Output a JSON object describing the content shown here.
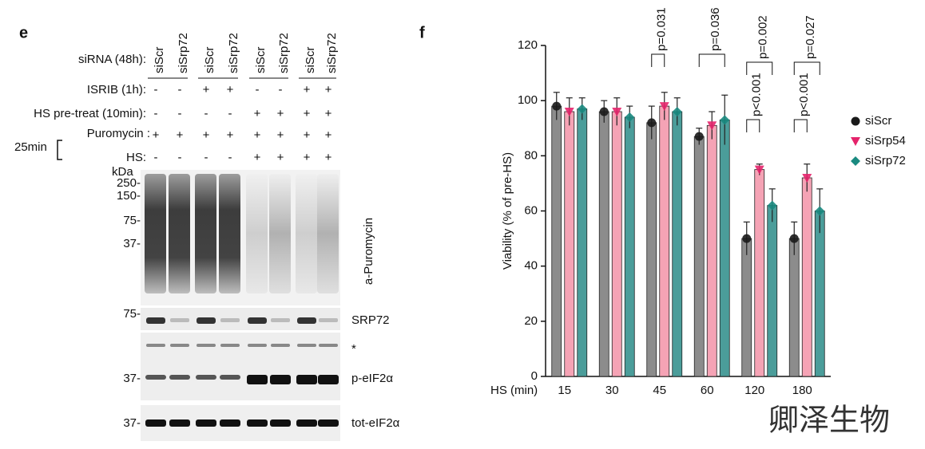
{
  "panel_e": {
    "label": "e",
    "rows": [
      {
        "label": "siRNA (48h):",
        "columns": [
          "siScr",
          "siSrp72",
          "siScr",
          "siSrp72",
          "siScr",
          "siSrp72",
          "siScr",
          "siSrp72"
        ]
      },
      {
        "label": "ISRIB (1h):",
        "signs": [
          "-",
          "-",
          "+",
          "+",
          "-",
          "-",
          "+",
          "+"
        ]
      },
      {
        "label": "HS pre-treat (10min):",
        "signs": [
          "-",
          "-",
          "-",
          "-",
          "+",
          "+",
          "+",
          "+"
        ]
      },
      {
        "label": "Puromycin :",
        "signs": [
          "+",
          "+",
          "+",
          "+",
          "+",
          "+",
          "+",
          "+"
        ]
      },
      {
        "label": "HS:",
        "signs": [
          "-",
          "-",
          "-",
          "-",
          "+",
          "+",
          "+",
          "+"
        ]
      }
    ],
    "time": "25min",
    "kda": "kDa",
    "markers": [
      "250-",
      "150-",
      "75-",
      "37-"
    ],
    "blots": [
      {
        "label": "a-Puromycin"
      },
      {
        "label": "SRP72",
        "marker": "75-"
      },
      {
        "label": "p-eIF2α",
        "marker": "37-",
        "note": "*"
      },
      {
        "label": "tot-eIF2α",
        "marker": "37-"
      }
    ]
  },
  "chart_data": {
    "type": "bar",
    "label": "f",
    "x_label": "HS (min)",
    "y_label": "Viability (% of pre-HS)",
    "categories": [
      "15",
      "30",
      "45",
      "60",
      "120",
      "180"
    ],
    "series": [
      {
        "name": "siScr",
        "color": "#8c8c8c",
        "marker_color": "#1a1a1a",
        "values": [
          98,
          96,
          92,
          87,
          50,
          50
        ],
        "errors": [
          5,
          4,
          6,
          3,
          6,
          6
        ]
      },
      {
        "name": "siSrp54",
        "color": "#f5a3b5",
        "marker_color": "#e5236b",
        "values": [
          96,
          96,
          98,
          91,
          75,
          72
        ],
        "errors": [
          5,
          5,
          5,
          5,
          2,
          5
        ]
      },
      {
        "name": "siSrp72",
        "color": "#4b9d9a",
        "marker_color": "#1a8a80",
        "values": [
          97,
          94,
          96,
          93,
          62,
          60
        ],
        "errors": [
          4,
          4,
          5,
          9,
          6,
          8
        ]
      }
    ],
    "ylim": [
      0,
      120
    ],
    "yticks": [
      0,
      20,
      40,
      60,
      80,
      100,
      120
    ],
    "annotations": [
      {
        "category": "45",
        "between": [
          "siScr",
          "siSrp54"
        ],
        "text": "p=0.031"
      },
      {
        "category": "60",
        "between": [
          "siScr",
          "siSrp72"
        ],
        "text": "p=0.036"
      },
      {
        "category": "120",
        "between": [
          "siScr",
          "siSrp54"
        ],
        "text": "p<0.001"
      },
      {
        "category": "120",
        "between": [
          "siScr",
          "siSrp72"
        ],
        "text": "p=0.002"
      },
      {
        "category": "180",
        "between": [
          "siScr",
          "siSrp54"
        ],
        "text": "p<0.001"
      },
      {
        "category": "180",
        "between": [
          "siScr",
          "siSrp72"
        ],
        "text": "p=0.027"
      }
    ]
  },
  "watermark": "卿泽生物"
}
